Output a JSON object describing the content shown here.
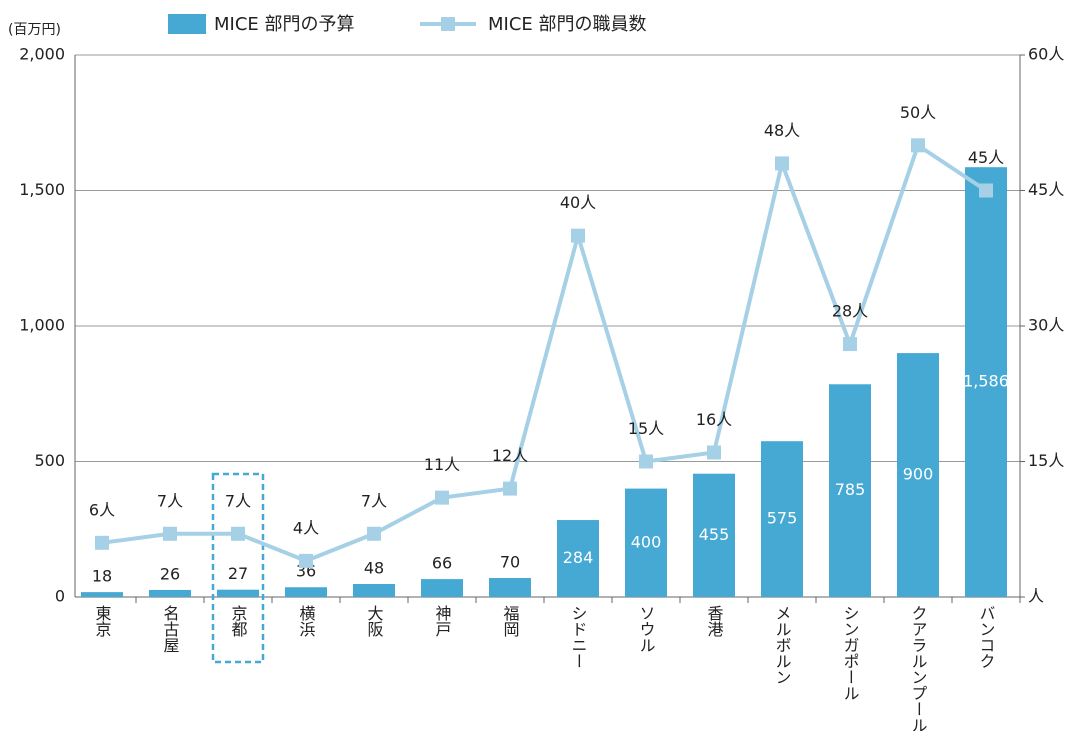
{
  "chart_data": {
    "type": "bar-line",
    "unit_label": "(百万円)",
    "categories": [
      "東京",
      "名古屋",
      "京都",
      "横浜",
      "大阪",
      "神戸",
      "福岡",
      "シドニー",
      "ソウル",
      "香港",
      "メルボルン",
      "シンガポール",
      "クアラルンプール",
      "バンコク"
    ],
    "series": [
      {
        "name": "MICE 部門の予算",
        "type": "bar",
        "color": "#45a9d4",
        "values": [
          18,
          26,
          27,
          36,
          48,
          66,
          70,
          284,
          400,
          455,
          575,
          785,
          900,
          1586
        ],
        "value_labels": [
          "18",
          "26",
          "27",
          "36",
          "48",
          "66",
          "70",
          "284",
          "400",
          "455",
          "575",
          "785",
          "900",
          "1,586"
        ]
      },
      {
        "name": "MICE 部門の職員数",
        "type": "line",
        "axis": "y2",
        "color": "#a6d0e6",
        "values": [
          6,
          7,
          7,
          4,
          7,
          11,
          12,
          40,
          15,
          16,
          48,
          28,
          50,
          45
        ],
        "value_labels": [
          "6人",
          "7人",
          "7人",
          "4人",
          "7人",
          "11人",
          "12人",
          "40人",
          "15人",
          "16人",
          "48人",
          "28人",
          "50人",
          "45人"
        ]
      }
    ],
    "ylim": [
      0,
      2000
    ],
    "yticks": [
      0,
      500,
      {
        "value": 1000,
        "label": "1,000"
      },
      {
        "value": 1500,
        "label": "1,500"
      },
      {
        "value": 2000,
        "label": "2,000"
      }
    ],
    "y2lim": [
      0,
      60
    ],
    "y2ticks": [
      {
        "value": 0,
        "label": "人"
      },
      {
        "value": 15,
        "label": "15人"
      },
      {
        "value": 30,
        "label": "30人"
      },
      {
        "value": 45,
        "label": "45人"
      },
      {
        "value": 60,
        "label": "60人"
      }
    ],
    "grid": true,
    "highlight": [
      2
    ],
    "legend": "top"
  }
}
